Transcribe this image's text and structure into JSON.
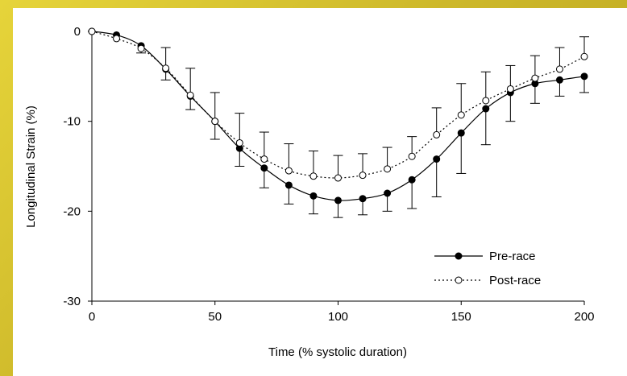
{
  "chart_data": {
    "type": "line",
    "xlabel": "Time (% systolic duration)",
    "ylabel": "Longitudinal Strain (%)",
    "xlim": [
      0,
      200
    ],
    "ylim": [
      -30,
      0
    ],
    "xticks": [
      "0",
      "50",
      "100",
      "150",
      "200"
    ],
    "yticks": [
      "0",
      "-10",
      "-20",
      "-30"
    ],
    "grid": false,
    "legend_position": "bottom-right",
    "series": [
      {
        "name": "Pre-race",
        "style": "solid",
        "marker": "filled-circle",
        "x": [
          0,
          10,
          20,
          30,
          40,
          50,
          60,
          70,
          80,
          90,
          100,
          110,
          120,
          130,
          140,
          150,
          160,
          170,
          180,
          190,
          200
        ],
        "y": [
          0,
          -0.4,
          -1.6,
          -4.2,
          -7.2,
          -10.0,
          -13.0,
          -15.2,
          -17.1,
          -18.3,
          -18.8,
          -18.6,
          -18.0,
          -16.5,
          -14.2,
          -11.3,
          -8.6,
          -6.8,
          -5.8,
          -5.4,
          -5.0
        ],
        "err": [
          0,
          0,
          0.8,
          1.2,
          1.5,
          2.0,
          2.0,
          2.2,
          2.1,
          2.0,
          1.9,
          1.8,
          2.0,
          3.2,
          4.2,
          4.5,
          4.0,
          3.2,
          2.2,
          1.8,
          1.8
        ]
      },
      {
        "name": "Post-race",
        "style": "dotted",
        "marker": "open-circle",
        "x": [
          0,
          10,
          20,
          30,
          40,
          50,
          60,
          70,
          80,
          90,
          100,
          110,
          120,
          130,
          140,
          150,
          160,
          170,
          180,
          190,
          200
        ],
        "y": [
          0,
          -0.8,
          -1.9,
          -4.1,
          -7.1,
          -10.0,
          -12.4,
          -14.2,
          -15.5,
          -16.1,
          -16.3,
          -16.0,
          -15.3,
          -13.9,
          -11.5,
          -9.3,
          -7.7,
          -6.4,
          -5.2,
          -4.2,
          -2.8
        ],
        "err": [
          0,
          0,
          0,
          2.3,
          3.0,
          3.2,
          3.3,
          3.0,
          3.0,
          2.8,
          2.5,
          2.4,
          2.4,
          2.2,
          3.0,
          3.5,
          3.2,
          2.6,
          2.5,
          2.4,
          2.2
        ]
      }
    ]
  }
}
